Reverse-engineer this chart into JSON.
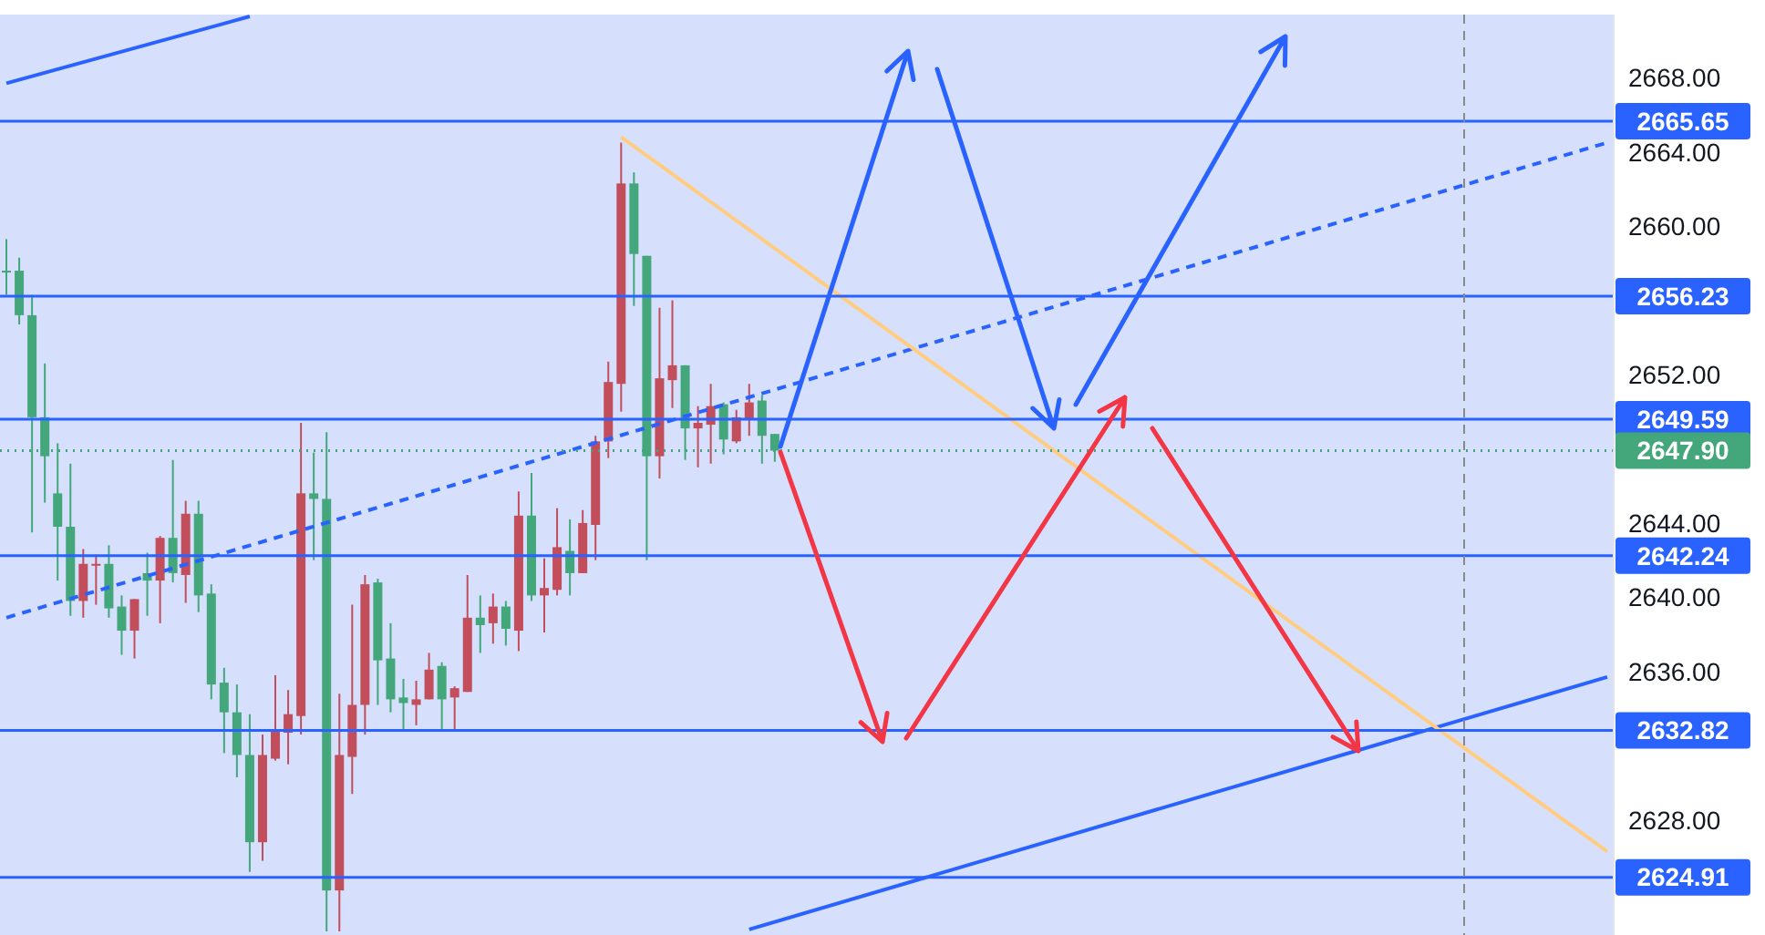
{
  "chart_data": {
    "type": "candlestick",
    "categories": [
      null,
      null,
      null,
      null,
      null,
      null,
      null,
      null,
      null,
      null,
      null,
      null,
      null,
      null,
      null,
      null,
      null,
      null,
      null,
      null,
      null,
      null,
      null,
      null,
      null,
      null,
      null,
      null,
      null,
      null,
      null,
      null,
      null,
      null,
      null,
      null,
      null,
      null,
      null,
      null,
      null,
      null,
      null,
      null,
      null,
      null,
      null,
      null,
      null,
      null,
      null,
      null,
      null,
      null,
      null,
      null,
      null,
      null,
      null,
      null,
      null,
      null,
      null,
      null,
      null,
      null,
      null,
      null,
      null,
      null,
      null,
      null,
      null,
      null,
      null,
      null,
      null,
      null,
      null,
      null,
      null,
      null,
      null,
      null,
      null,
      null,
      null,
      null,
      null,
      null,
      null,
      null,
      null,
      null,
      null,
      null,
      null,
      null,
      null,
      null,
      null,
      null,
      null,
      null,
      null,
      null,
      null,
      null,
      null,
      null,
      null,
      null,
      null,
      null,
      null,
      null,
      null,
      null,
      null,
      null,
      null,
      null,
      null,
      null,
      null,
      null
    ],
    "ohlc": [
      [
        2657.5,
        2659.3,
        2656.3,
        2657.6
      ],
      [
        2657.6,
        2658.3,
        2654.7,
        2655.2
      ],
      [
        2655.2,
        2656.3,
        2643.5,
        2649.7
      ],
      [
        2649.7,
        2652.6,
        2645.1,
        2647.6
      ],
      [
        2645.6,
        2648.3,
        2640.9,
        2643.8
      ],
      [
        2643.8,
        2647.2,
        2639.0,
        2639.8
      ],
      [
        2639.8,
        2642.6,
        2638.9,
        2641.8
      ],
      [
        2641.7,
        2642.3,
        2639.6,
        2641.8
      ],
      [
        2641.8,
        2642.8,
        2638.9,
        2639.4
      ],
      [
        2639.5,
        2640.1,
        2636.9,
        2638.2
      ],
      [
        2638.2,
        2639.9,
        2636.7,
        2639.9
      ],
      [
        2641.3,
        2642.4,
        2639.0,
        2640.9
      ],
      [
        2640.9,
        2643.3,
        2638.6,
        2643.2
      ],
      [
        2643.2,
        2647.4,
        2640.8,
        2641.3
      ],
      [
        2641.2,
        2645.2,
        2639.7,
        2644.5
      ],
      [
        2644.5,
        2645.2,
        2639.2,
        2640.1
      ],
      [
        2640.2,
        2640.7,
        2634.5,
        2635.3
      ],
      [
        2635.4,
        2636.2,
        2631.6,
        2633.8
      ],
      [
        2633.8,
        2635.3,
        2630.3,
        2631.5
      ],
      [
        2631.5,
        2633.7,
        2625.2,
        2626.8
      ],
      [
        2626.8,
        2632.6,
        2625.8,
        2631.5
      ],
      [
        2631.3,
        2635.8,
        2631.2,
        2632.8
      ],
      [
        2632.7,
        2635.0,
        2631.0,
        2633.7
      ],
      [
        2633.6,
        2649.4,
        2632.6,
        2645.6
      ],
      [
        2645.6,
        2647.8,
        2642.0,
        2645.3
      ],
      [
        2645.3,
        2648.9,
        2622.0,
        2624.2
      ],
      [
        2624.2,
        2634.8,
        2622.0,
        2631.5
      ],
      [
        2631.4,
        2639.6,
        2629.4,
        2634.2
      ],
      [
        2634.2,
        2641.2,
        2632.6,
        2640.7
      ],
      [
        2640.8,
        2641.0,
        2634.2,
        2636.6
      ],
      [
        2636.7,
        2638.6,
        2633.8,
        2634.5
      ],
      [
        2634.6,
        2635.6,
        2632.9,
        2634.3
      ],
      [
        2634.2,
        2635.5,
        2633.1,
        2634.5
      ],
      [
        2634.5,
        2637.0,
        2634.5,
        2636.1
      ],
      [
        2636.3,
        2636.5,
        2632.9,
        2634.5
      ],
      [
        2634.6,
        2635.2,
        2632.9,
        2635.1
      ],
      [
        2634.9,
        2641.2,
        2634.9,
        2638.9
      ],
      [
        2638.9,
        2640.1,
        2637.0,
        2638.5
      ],
      [
        2638.6,
        2640.2,
        2637.5,
        2639.5
      ],
      [
        2639.5,
        2639.8,
        2637.4,
        2638.3
      ],
      [
        2638.2,
        2645.7,
        2637.1,
        2644.4
      ],
      [
        2644.4,
        2646.7,
        2639.8,
        2640.1
      ],
      [
        2640.1,
        2642.1,
        2638.1,
        2640.5
      ],
      [
        2640.4,
        2644.8,
        2640.1,
        2642.7
      ],
      [
        2642.5,
        2644.2,
        2640.1,
        2641.3
      ],
      [
        2641.3,
        2644.7,
        2641.3,
        2644.0
      ],
      [
        2643.9,
        2648.7,
        2642.0,
        2648.4
      ],
      [
        2648.4,
        2652.7,
        2647.5,
        2651.6
      ],
      [
        2651.5,
        2664.5,
        2650.0,
        2662.3
      ],
      [
        2662.3,
        2662.9,
        2655.7,
        2658.5
      ],
      [
        2658.4,
        2658.4,
        2642.0,
        2647.6
      ],
      [
        2647.6,
        2655.6,
        2646.4,
        2651.8
      ],
      [
        2651.7,
        2656.0,
        2650.2,
        2652.5
      ],
      [
        2652.5,
        2652.5,
        2647.4,
        2649.1
      ],
      [
        2649.1,
        2650.3,
        2647.0,
        2649.4
      ],
      [
        2649.3,
        2651.5,
        2647.2,
        2650.3
      ],
      [
        2650.4,
        2650.5,
        2647.7,
        2648.5
      ],
      [
        2648.4,
        2650.1,
        2648.3,
        2649.7
      ],
      [
        2649.6,
        2651.5,
        2648.7,
        2650.5
      ],
      [
        2650.6,
        2650.9,
        2647.2,
        2648.7
      ],
      [
        2648.8,
        2648.8,
        2647.3,
        2647.9
      ],
      null,
      null,
      null,
      null,
      null,
      null,
      null,
      null,
      null,
      null,
      null,
      null,
      null,
      null,
      null,
      null,
      null,
      null,
      null,
      null,
      null,
      null,
      null,
      null,
      null,
      null,
      null,
      null,
      null,
      null,
      null,
      null,
      null,
      null,
      null,
      null,
      null,
      null,
      null,
      null,
      null,
      null,
      null,
      null,
      null,
      null,
      null,
      null,
      null,
      null,
      null,
      null,
      null,
      null,
      null,
      null,
      null,
      null,
      null,
      null,
      null,
      null,
      null,
      null,
      null
    ],
    "colors": [
      "#43a77b",
      "#43a77b",
      "#43a77b",
      "#43a77b",
      "#43a77b",
      "#43a77b",
      "#c24e5c",
      "#c24e5c",
      "#43a77b",
      "#43a77b",
      "#c24e5c",
      "#43a77b",
      "#c24e5c",
      "#43a77b",
      "#c24e5c",
      "#43a77b",
      "#43a77b",
      "#43a77b",
      "#43a77b",
      "#43a77b",
      "#c24e5c",
      "#c24e5c",
      "#c24e5c",
      "#c24e5c",
      "#43a77b",
      "#43a77b",
      "#c24e5c",
      "#c24e5c",
      "#c24e5c",
      "#43a77b",
      "#43a77b",
      "#43a77b",
      "#c24e5c",
      "#c24e5c",
      "#43a77b",
      "#c24e5c",
      "#c24e5c",
      "#43a77b",
      "#c24e5c",
      "#43a77b",
      "#c24e5c",
      "#43a77b",
      "#c24e5c",
      "#c24e5c",
      "#43a77b",
      "#c24e5c",
      "#c24e5c",
      "#c24e5c",
      "#c24e5c",
      "#43a77b",
      "#43a77b",
      "#c24e5c",
      "#c24e5c",
      "#43a77b",
      "#c24e5c",
      "#c24e5c",
      "#43a77b",
      "#c24e5c",
      "#c24e5c",
      "#43a77b",
      "#43a77b",
      null,
      null,
      null,
      null,
      null,
      null,
      null,
      null,
      null,
      null,
      null,
      null,
      null,
      null,
      null,
      null,
      null,
      null,
      null,
      null,
      null,
      null,
      null,
      null,
      null,
      null,
      null,
      null,
      null,
      null,
      null,
      null,
      null,
      null,
      null,
      null,
      null,
      null,
      null,
      null,
      null,
      null,
      null,
      null,
      null,
      null,
      null,
      null,
      null,
      null,
      null,
      null,
      null,
      null,
      null,
      null,
      null,
      null,
      null,
      null,
      null,
      null,
      null,
      null,
      null
    ],
    "series": [
      {
        "type": "line",
        "color": "#2962ff",
        "values": [
          2667.7,
          null,
          null,
          null,
          null,
          null,
          null,
          null,
          null,
          null,
          null,
          null,
          null,
          null,
          null,
          null,
          null,
          null,
          null,
          2671.3,
          null,
          null,
          null,
          null,
          null,
          null,
          null,
          null,
          null,
          null,
          null,
          null,
          null,
          null,
          null,
          null,
          null,
          null,
          null,
          null,
          null,
          null,
          null,
          null,
          null,
          null,
          null,
          null,
          null,
          null,
          null,
          null,
          null,
          null,
          null,
          null,
          null,
          null,
          null,
          null,
          null,
          null,
          null,
          null,
          null,
          null,
          null,
          null,
          null,
          null,
          null,
          null,
          null,
          null,
          null,
          null,
          null,
          null,
          null,
          null,
          null,
          null,
          null,
          null,
          null,
          null,
          null,
          null,
          null,
          null,
          null,
          null,
          null,
          null,
          null,
          null,
          null,
          null,
          null,
          null,
          null,
          null,
          null,
          null,
          null,
          null,
          null,
          null,
          null,
          null,
          null,
          null,
          null,
          null,
          null,
          null,
          null,
          null,
          null,
          null,
          null,
          null,
          null,
          null,
          null,
          null
        ]
      },
      {
        "type": "line",
        "color": "#2962ff",
        "line_style": "dashed",
        "values": [
          2638.9,
          null,
          null,
          null,
          null,
          null,
          null,
          null,
          null,
          null,
          null,
          null,
          null,
          null,
          null,
          null,
          null,
          null,
          null,
          null,
          null,
          null,
          null,
          null,
          null,
          null,
          null,
          null,
          null,
          null,
          null,
          null,
          null,
          null,
          null,
          null,
          null,
          null,
          null,
          null,
          null,
          null,
          null,
          null,
          null,
          null,
          null,
          null,
          null,
          null,
          null,
          null,
          null,
          null,
          null,
          null,
          null,
          null,
          null,
          null,
          null,
          null,
          null,
          null,
          null,
          null,
          null,
          null,
          null,
          null,
          null,
          null,
          null,
          null,
          null,
          null,
          null,
          null,
          null,
          null,
          null,
          null,
          null,
          null,
          null,
          null,
          null,
          null,
          null,
          null,
          null,
          null,
          null,
          null,
          null,
          null,
          null,
          null,
          null,
          null,
          null,
          null,
          null,
          null,
          null,
          null,
          null,
          null,
          null,
          null,
          null,
          null,
          null,
          null,
          null,
          null,
          null,
          null,
          null,
          null,
          null,
          null,
          null,
          null,
          null,
          2664.5
        ]
      },
      {
        "type": "line",
        "color": "#2962ff",
        "values": [
          null,
          null,
          null,
          null,
          null,
          null,
          null,
          null,
          null,
          null,
          null,
          null,
          null,
          null,
          null,
          null,
          null,
          null,
          null,
          null,
          null,
          null,
          null,
          null,
          null,
          null,
          null,
          null,
          null,
          null,
          null,
          null,
          null,
          null,
          null,
          null,
          null,
          null,
          null,
          null,
          null,
          null,
          null,
          null,
          null,
          null,
          null,
          null,
          null,
          null,
          null,
          null,
          null,
          null,
          null,
          null,
          null,
          null,
          2622.1,
          null,
          null,
          null,
          null,
          null,
          null,
          null,
          null,
          null,
          null,
          null,
          null,
          null,
          null,
          null,
          null,
          null,
          null,
          null,
          null,
          null,
          null,
          null,
          null,
          null,
          null,
          null,
          null,
          null,
          null,
          null,
          null,
          null,
          null,
          null,
          null,
          null,
          null,
          null,
          null,
          null,
          null,
          null,
          null,
          null,
          null,
          null,
          null,
          null,
          null,
          null,
          null,
          null,
          null,
          null,
          null,
          null,
          null,
          null,
          null,
          null,
          null,
          null,
          null,
          null,
          null,
          2635.7
        ]
      },
      {
        "type": "line",
        "color": "#ffcc80",
        "values": [
          null,
          null,
          null,
          null,
          null,
          null,
          null,
          null,
          null,
          null,
          null,
          null,
          null,
          null,
          null,
          null,
          null,
          null,
          null,
          null,
          null,
          null,
          null,
          null,
          null,
          null,
          null,
          null,
          null,
          null,
          null,
          null,
          null,
          null,
          null,
          null,
          null,
          null,
          null,
          null,
          null,
          null,
          null,
          null,
          null,
          null,
          null,
          null,
          2664.8,
          null,
          null,
          null,
          null,
          null,
          null,
          null,
          null,
          null,
          null,
          null,
          null,
          null,
          null,
          null,
          null,
          null,
          null,
          null,
          null,
          null,
          null,
          null,
          null,
          null,
          null,
          null,
          null,
          null,
          null,
          null,
          null,
          null,
          null,
          null,
          null,
          null,
          null,
          null,
          null,
          null,
          null,
          null,
          null,
          null,
          null,
          null,
          null,
          null,
          null,
          null,
          null,
          null,
          null,
          null,
          null,
          null,
          null,
          null,
          null,
          null,
          null,
          null,
          null,
          null,
          null,
          null,
          null,
          null,
          null,
          null,
          null,
          null,
          null,
          null,
          null,
          2626.3
        ]
      }
    ],
    "ylim": [
      2621.8,
      2671.4
    ],
    "yticks": [
      {
        "value": 2668,
        "label": "2668.00"
      },
      {
        "value": 2664,
        "label": "2664.00"
      },
      {
        "value": 2660,
        "label": "2660.00"
      },
      {
        "value": 2652,
        "label": "2652.00"
      },
      {
        "value": 2644,
        "label": "2644.00"
      },
      {
        "value": 2640,
        "label": "2640.00"
      },
      {
        "value": 2636,
        "label": "2636.00"
      },
      {
        "value": 2628,
        "label": "2628.00"
      }
    ],
    "tick_labels": "y",
    "ref_lines": [
      {
        "axis": "y",
        "value": 2665.65,
        "label": "2665.65",
        "color": "#2962ff"
      },
      {
        "axis": "y",
        "value": 2656.23,
        "label": "2656.23",
        "color": "#2962ff"
      },
      {
        "axis": "y",
        "value": 2649.59,
        "label": "2649.59",
        "color": "#2962ff"
      },
      {
        "axis": "y",
        "value": 2647.9,
        "label": "2647.90",
        "color": "#43a77b",
        "line_style": "dotted"
      },
      {
        "axis": "y",
        "value": 2642.24,
        "label": "2642.24",
        "color": "#2962ff"
      },
      {
        "axis": "y",
        "value": 2632.82,
        "label": "2632.82",
        "color": "#2962ff"
      },
      {
        "axis": "y",
        "value": 2624.91,
        "label": "2624.91",
        "color": "#2962ff"
      }
    ]
  }
}
